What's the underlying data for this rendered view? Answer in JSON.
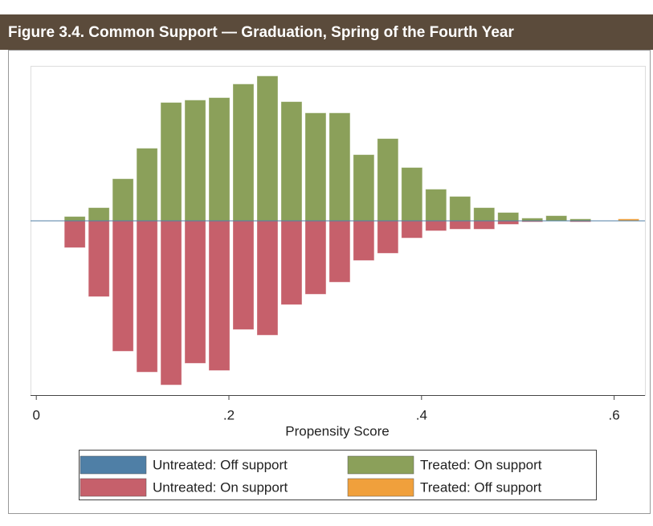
{
  "chart_data": {
    "type": "mirrored-histogram",
    "title": "Figure 3.4. Common Support — Graduation, Spring of the Fourth Year",
    "x_label": "Propensity Score",
    "bins": [
      0.0275,
      0.0525,
      0.0775,
      0.1025,
      0.1275,
      0.1525,
      0.1775,
      0.2025,
      0.2275,
      0.2525,
      0.2775,
      0.3025,
      0.3275,
      0.3525,
      0.3775,
      0.4025,
      0.4275,
      0.4525,
      0.4775,
      0.5025,
      0.5275,
      0.5525,
      0.5775,
      0.6025,
      0.6275
    ],
    "series": [
      {
        "name": "Untreated: Off support",
        "color": "#4f7fa6",
        "values": [
          0,
          0,
          0,
          0,
          0,
          0,
          0,
          0,
          0,
          0,
          0,
          0,
          0,
          0,
          0,
          0,
          0,
          0,
          0,
          0,
          0,
          0,
          0,
          0
        ]
      },
      {
        "name": "Untreated: On support",
        "color": "#c6606b",
        "values": [
          -33,
          -94,
          -162,
          -188,
          -204,
          -177,
          -186,
          -135,
          -142,
          -104,
          -91,
          -76,
          -49,
          -40,
          -21,
          -12,
          -10,
          -10,
          -4,
          -1,
          0,
          -1,
          0,
          0
        ]
      },
      {
        "name": "Treated: On support",
        "color": "#8ba05a",
        "values": [
          5,
          16,
          52,
          90,
          147,
          150,
          153,
          170,
          180,
          148,
          134,
          134,
          82,
          102,
          66,
          39,
          30,
          16,
          10,
          3,
          6,
          2,
          0,
          0
        ]
      },
      {
        "name": "Treated: Off support",
        "color": "#f0a03c",
        "values": [
          0,
          0,
          0,
          0,
          0,
          0,
          0,
          0,
          0,
          0,
          0,
          0,
          0,
          0,
          0,
          0,
          0,
          0,
          0,
          0,
          0,
          0,
          0,
          2
        ]
      }
    ],
    "xlim": [
      -0.006,
      0.632
    ],
    "xticks": [
      0,
      {
        "value": 0.2,
        "label": ".2"
      },
      {
        "value": 0.4,
        "label": ".4"
      },
      {
        "value": 0.6,
        "label": ".6"
      }
    ],
    "ylim": [
      -217,
      193
    ]
  }
}
